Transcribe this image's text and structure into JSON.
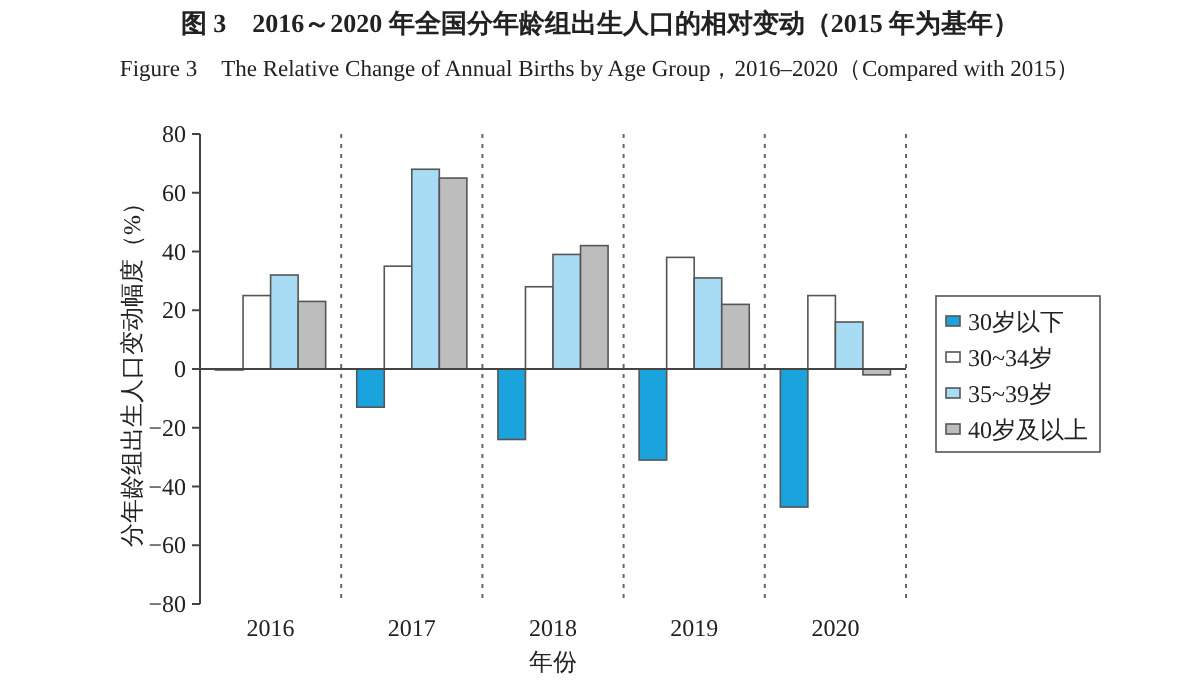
{
  "chart_data": {
    "type": "bar",
    "title": "图 3　2016～2020 年全国分年龄组出生人口的相对变动（2015 年为基年）",
    "subtitle": "Figure 3　The Relative Change of Annual Births by Age Group，2016–2020（Compared with 2015）",
    "xlabel": "年份",
    "ylabel": "分年龄组出生人口变动幅度（%）",
    "categories": [
      "2016",
      "2017",
      "2018",
      "2019",
      "2020"
    ],
    "series": [
      {
        "name": "30岁以下",
        "color": "#1aa3dc",
        "values": [
          0,
          -13,
          -24,
          -31,
          -47
        ]
      },
      {
        "name": "30~34岁",
        "color": "#ffffff",
        "values": [
          25,
          35,
          28,
          38,
          25
        ]
      },
      {
        "name": "35~39岁",
        "color": "#a8dcf4",
        "values": [
          32,
          68,
          39,
          31,
          16
        ]
      },
      {
        "name": "40岁及以上",
        "color": "#bdbdbd",
        "values": [
          23,
          65,
          42,
          22,
          -2
        ]
      }
    ],
    "ylim": [
      -80,
      80
    ],
    "yticks": [
      -80,
      -60,
      -40,
      -20,
      0,
      20,
      40,
      60,
      80
    ],
    "grid": "x",
    "legend": "right"
  }
}
